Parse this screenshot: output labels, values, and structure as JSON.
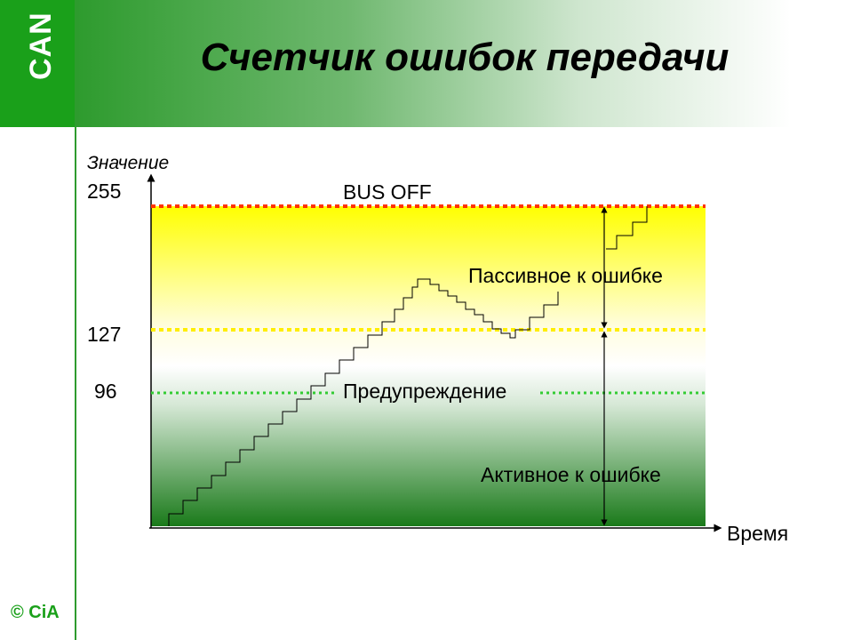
{
  "logo": {
    "text": "CAN",
    "icon": "can-logo-icon"
  },
  "title": "Счетчик ошибок передачи",
  "copyright": "© CiA",
  "diagram": {
    "y_axis_label": "Значение",
    "x_axis_label": "Время",
    "levels": [
      {
        "value": 255,
        "label": "255",
        "line_label": "BUS OFF",
        "color": "#ff3300"
      },
      {
        "value": 127,
        "label": "127",
        "line_label": "",
        "color": "#ffee00"
      },
      {
        "value": 96,
        "label": "96",
        "line_label": "Предупреждение",
        "color": "#33cc33"
      }
    ],
    "regions": [
      {
        "name": "error-passive",
        "label": "Пассивное к ошибке"
      },
      {
        "name": "error-active",
        "label": "Активное к ошибке"
      }
    ],
    "colors": {
      "top": "#ffff00",
      "middle": "#ffffff",
      "bottom": "#1a7a1a"
    }
  }
}
